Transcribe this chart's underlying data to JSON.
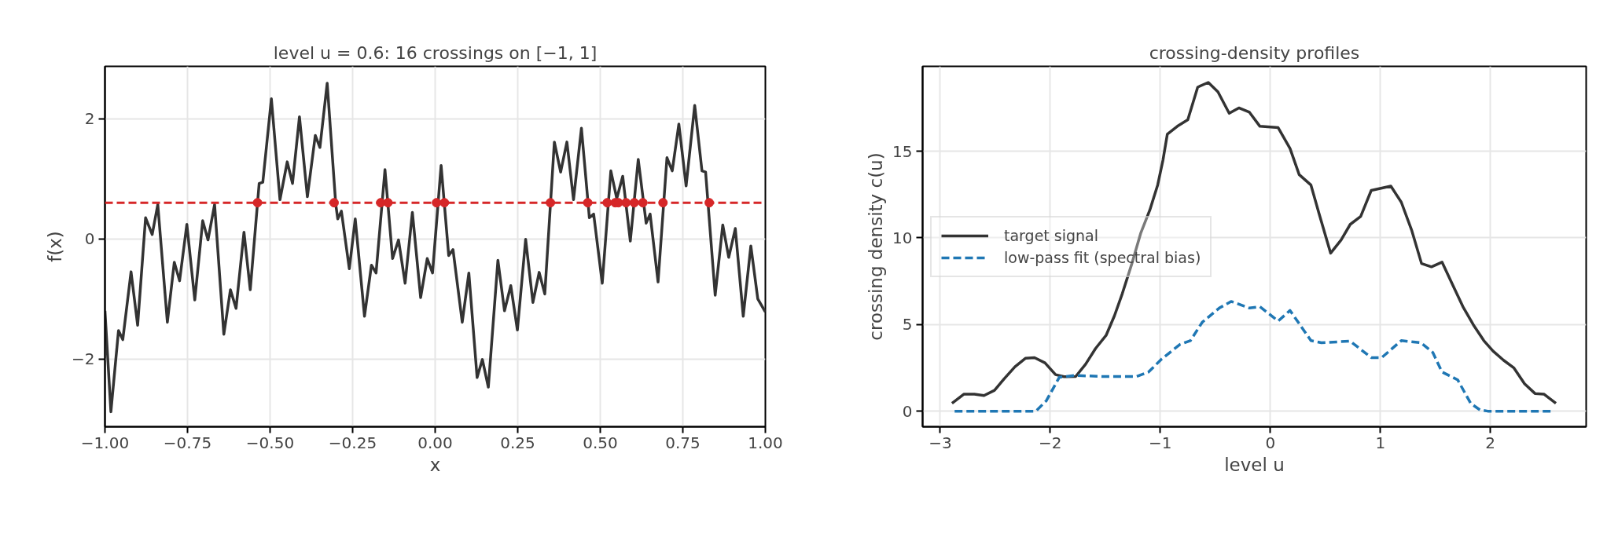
{
  "chart_data": [
    {
      "type": "line",
      "title": "level u = 0.6: 16 crossings on [−1, 1]",
      "xlabel": "x",
      "ylabel": "f(x)",
      "xlim": [
        -1,
        1
      ],
      "ylim": [
        -3.13,
        2.87
      ],
      "xticks": [
        {
          "value": -1,
          "label": "−1.00"
        },
        {
          "value": -0.75,
          "label": "−0.75"
        },
        {
          "value": -0.5,
          "label": "−0.50"
        },
        {
          "value": -0.25,
          "label": "−0.25"
        },
        {
          "value": 0,
          "label": "0.00"
        },
        {
          "value": 0.25,
          "label": "0.25"
        },
        {
          "value": 0.5,
          "label": "0.50"
        },
        {
          "value": 0.75,
          "label": "0.75"
        },
        {
          "value": 1,
          "label": "1.00"
        }
      ],
      "yticks": [
        {
          "value": -2,
          "label": "−2"
        },
        0,
        2
      ],
      "grid": true,
      "legend": false,
      "ref_lines": [
        {
          "axis": "y",
          "value": 0.6,
          "color": "#d62728",
          "line_style": "dashed"
        }
      ],
      "series": [
        {
          "type": "line",
          "color": "#333333",
          "x": [
            -1.0,
            -0.982,
            -0.959,
            -0.946,
            -0.921,
            -0.901,
            -0.877,
            -0.857,
            -0.84,
            -0.811,
            -0.79,
            -0.774,
            -0.752,
            -0.728,
            -0.704,
            -0.688,
            -0.668,
            -0.64,
            -0.62,
            -0.603,
            -0.579,
            -0.56,
            -0.533,
            -0.522,
            -0.496,
            -0.47,
            -0.448,
            -0.432,
            -0.411,
            -0.387,
            -0.363,
            -0.349,
            -0.327,
            -0.301,
            -0.295,
            -0.284,
            -0.26,
            -0.242,
            -0.214,
            -0.193,
            -0.179,
            -0.152,
            -0.129,
            -0.111,
            -0.091,
            -0.069,
            -0.044,
            -0.024,
            -0.008,
            0.018,
            0.041,
            0.054,
            0.082,
            0.102,
            0.127,
            0.143,
            0.161,
            0.19,
            0.21,
            0.229,
            0.249,
            0.274,
            0.296,
            0.315,
            0.332,
            0.361,
            0.38,
            0.399,
            0.419,
            0.443,
            0.467,
            0.48,
            0.506,
            0.532,
            0.55,
            0.568,
            0.591,
            0.615,
            0.639,
            0.651,
            0.675,
            0.702,
            0.718,
            0.738,
            0.76,
            0.786,
            0.808,
            0.819,
            0.848,
            0.871,
            0.889,
            0.909,
            0.933,
            0.956,
            0.977,
            1.0
          ],
          "values": [
            -1.2,
            -2.88,
            -1.53,
            -1.68,
            -0.55,
            -1.44,
            0.35,
            0.07,
            0.57,
            -1.39,
            -0.39,
            -0.7,
            0.24,
            -1.02,
            0.3,
            -0.02,
            0.57,
            -1.59,
            -0.85,
            -1.16,
            0.11,
            -0.85,
            0.92,
            0.94,
            2.33,
            0.65,
            1.28,
            0.92,
            2.03,
            0.7,
            1.72,
            1.52,
            2.59,
            0.57,
            0.33,
            0.46,
            -0.5,
            0.33,
            -1.29,
            -0.44,
            -0.57,
            1.15,
            -0.33,
            -0.02,
            -0.74,
            0.44,
            -0.98,
            -0.33,
            -0.57,
            1.22,
            -0.28,
            -0.18,
            -1.39,
            -0.57,
            -2.31,
            -2.01,
            -2.47,
            -0.36,
            -1.2,
            -0.78,
            -1.52,
            -0.01,
            -1.06,
            -0.56,
            -0.92,
            1.61,
            1.11,
            1.61,
            0.65,
            1.84,
            0.35,
            0.41,
            -0.74,
            1.13,
            0.67,
            1.04,
            -0.04,
            1.32,
            0.26,
            0.41,
            -0.72,
            1.35,
            1.13,
            1.91,
            0.88,
            2.22,
            1.13,
            1.11,
            -0.94,
            0.23,
            -0.31,
            0.17,
            -1.29,
            -0.12,
            -1.0,
            -1.22
          ]
        },
        {
          "type": "scatter",
          "marker": "circle",
          "color": "#d62728",
          "x": [
            -0.538,
            -0.306,
            -0.165,
            -0.143,
            0.004,
            0.028,
            0.349,
            0.462,
            0.521,
            0.545,
            0.555,
            0.578,
            0.603,
            0.629,
            0.69,
            0.83
          ],
          "values": [
            0.6,
            0.6,
            0.6,
            0.6,
            0.6,
            0.6,
            0.6,
            0.6,
            0.6,
            0.6,
            0.6,
            0.6,
            0.6,
            0.6,
            0.6,
            0.6
          ]
        }
      ]
    },
    {
      "type": "line",
      "title": "crossing-density profiles",
      "xlabel": "level u",
      "ylabel": "crossing density c(u)",
      "xlim": [
        -3.16,
        2.87
      ],
      "ylim": [
        -0.9,
        19.9
      ],
      "xticks": [
        {
          "value": -3,
          "label": "−3"
        },
        {
          "value": -2,
          "label": "−2"
        },
        {
          "value": -1,
          "label": "−1"
        },
        0,
        1,
        2
      ],
      "yticks": [
        0,
        5,
        10,
        15
      ],
      "grid": true,
      "legend": "center left",
      "series": [
        {
          "name": "target signal",
          "color": "#333333",
          "line_style": "solid",
          "x": [
            -2.893,
            -2.786,
            -2.69,
            -2.602,
            -2.507,
            -2.417,
            -2.321,
            -2.226,
            -2.143,
            -2.048,
            -1.952,
            -1.874,
            -1.769,
            -1.679,
            -1.588,
            -1.493,
            -1.417,
            -1.345,
            -1.262,
            -1.179,
            -1.095,
            -1.024,
            -0.976,
            -0.936,
            -0.845,
            -0.75,
            -0.66,
            -0.564,
            -0.476,
            -0.374,
            -0.286,
            -0.19,
            -0.095,
            0.071,
            0.179,
            0.262,
            0.369,
            0.44,
            0.548,
            0.643,
            0.726,
            0.821,
            0.917,
            1.095,
            1.19,
            1.286,
            1.374,
            1.464,
            1.56,
            1.655,
            1.75,
            1.845,
            1.94,
            2.024,
            2.119,
            2.214,
            2.31,
            2.405,
            2.488,
            2.595
          ],
          "values": [
            0.45,
            0.98,
            0.98,
            0.9,
            1.2,
            1.88,
            2.56,
            3.05,
            3.09,
            2.79,
            2.11,
            1.99,
            2.0,
            2.71,
            3.62,
            4.37,
            5.5,
            6.79,
            8.44,
            10.25,
            11.61,
            13.05,
            14.48,
            15.99,
            16.44,
            16.82,
            18.7,
            18.97,
            18.43,
            17.19,
            17.5,
            17.25,
            16.44,
            16.36,
            15.16,
            13.65,
            13.05,
            11.46,
            9.12,
            9.88,
            10.78,
            11.24,
            12.74,
            12.99,
            12.06,
            10.41,
            8.52,
            8.33,
            8.6,
            7.31,
            6.03,
            4.98,
            4.07,
            3.47,
            2.94,
            2.49,
            1.58,
            1.02,
            0.98,
            0.45
          ]
        },
        {
          "name": "low-pass fit (spectral bias)",
          "color": "#1f77b4",
          "line_style": "dashed",
          "x": [
            -2.869,
            -2.5,
            -2.131,
            -2.036,
            -1.917,
            -1.774,
            -1.512,
            -1.214,
            -1.107,
            -0.988,
            -0.821,
            -0.726,
            -0.619,
            -0.464,
            -0.357,
            -0.321,
            -0.19,
            -0.095,
            0.071,
            0.179,
            0.262,
            0.369,
            0.464,
            0.726,
            0.917,
            1.012,
            1.19,
            1.369,
            1.476,
            1.56,
            1.702,
            1.821,
            1.905,
            1.976,
            2.56
          ],
          "values": [
            0,
            0,
            0,
            0.6,
            1.96,
            2.06,
            2.0,
            2.0,
            2.26,
            3.01,
            3.85,
            4.07,
            5.13,
            5.95,
            6.33,
            6.26,
            5.95,
            6.03,
            5.2,
            5.81,
            5.05,
            4.07,
            3.95,
            4.04,
            3.09,
            3.09,
            4.07,
            3.95,
            3.39,
            2.26,
            1.81,
            0.45,
            0.07,
            0,
            0
          ]
        }
      ]
    }
  ]
}
